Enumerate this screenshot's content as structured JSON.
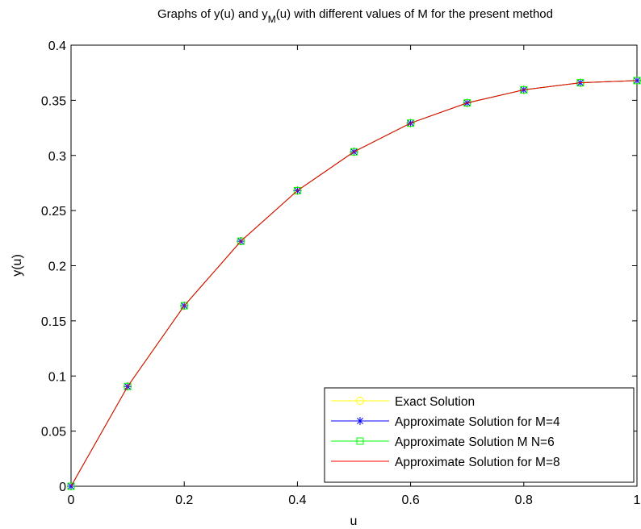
{
  "chart_data": {
    "type": "line",
    "title": {
      "prefix": "Graphs of y(u) and y",
      "subscript": "M",
      "suffix": "(u) with different values of M for the present method"
    },
    "xlabel": "u",
    "ylabel": "y(u)",
    "xlim": [
      0,
      1
    ],
    "ylim": [
      0,
      0.4
    ],
    "xticks": [
      0,
      0.2,
      0.4,
      0.6,
      0.8,
      1
    ],
    "xtick_labels": [
      "0",
      "0.2",
      "0.4",
      "0.6",
      "0.8",
      "1"
    ],
    "yticks": [
      0,
      0.05,
      0.1,
      0.15,
      0.2,
      0.25,
      0.3,
      0.35,
      0.4
    ],
    "ytick_labels": [
      "0",
      "0.05",
      "0.1",
      "0.15",
      "0.2",
      "0.25",
      "0.3",
      "0.35",
      "0.4"
    ],
    "grid": false,
    "legend_position": "bottom-right",
    "x": [
      0,
      0.1,
      0.2,
      0.3,
      0.4,
      0.5,
      0.6,
      0.7,
      0.8,
      0.9,
      1.0
    ],
    "series": [
      {
        "name": "Exact Solution",
        "marker": "circle",
        "color": "#ffff00",
        "values": [
          0,
          0.0905,
          0.1637,
          0.2222,
          0.2681,
          0.3033,
          0.3293,
          0.3476,
          0.3595,
          0.3659,
          0.3679
        ]
      },
      {
        "name": "Approximate Solution for M=4",
        "marker": "star",
        "color": "#0000ff",
        "values": [
          0,
          0.0905,
          0.1637,
          0.2222,
          0.2681,
          0.3033,
          0.3293,
          0.3476,
          0.3595,
          0.3659,
          0.3679
        ]
      },
      {
        "name": "Approximate Solution M N=6",
        "marker": "square",
        "color": "#00ff00",
        "values": [
          0,
          0.0905,
          0.1637,
          0.2222,
          0.2681,
          0.3033,
          0.3293,
          0.3476,
          0.3595,
          0.3659,
          0.3679
        ]
      },
      {
        "name": "Approximate Solution for M=8",
        "marker": "none",
        "color": "#ff0000",
        "values": [
          0,
          0.0905,
          0.1637,
          0.2222,
          0.2681,
          0.3033,
          0.3293,
          0.3476,
          0.3595,
          0.3659,
          0.3679
        ]
      }
    ]
  }
}
